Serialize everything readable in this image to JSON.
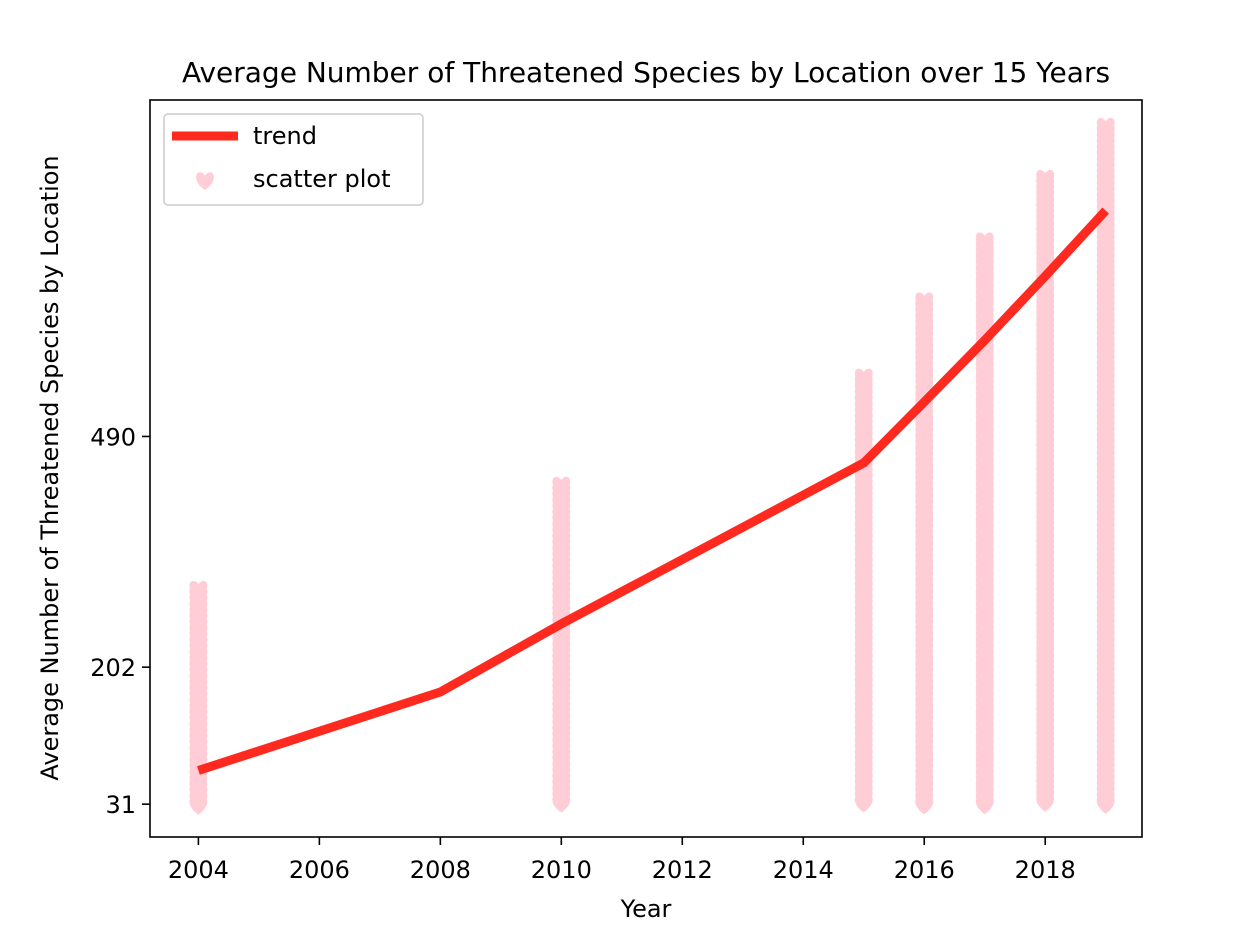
{
  "chart_data": {
    "type": "line",
    "title": "Average Number of Threatened Species by Location over 15 Years",
    "xlabel": "Year",
    "ylabel": "Average Number of Threatened Species by Location",
    "xlim": [
      2003.2,
      2019.6
    ],
    "ylim": [
      -10,
      910
    ],
    "xticks": [
      2004,
      2006,
      2008,
      2010,
      2012,
      2014,
      2016,
      2018
    ],
    "yticks": [
      31,
      202,
      490
    ],
    "grid": false,
    "legend": {
      "position": "top-left",
      "entries": [
        "trend",
        "scatter plot"
      ]
    },
    "series": [
      {
        "name": "trend",
        "color": "#ff2a1f",
        "x": [
          2004,
          2008,
          2010,
          2015,
          2016,
          2017,
          2018,
          2019
        ],
        "y": [
          73,
          171,
          256,
          457,
          533,
          610,
          690,
          772
        ]
      },
      {
        "name": "scatter plot",
        "color": "#ffcdd6",
        "marker": "heart-icon",
        "ranges": [
          {
            "x": 2004,
            "ymin": 27,
            "ymax": 300
          },
          {
            "x": 2010,
            "ymin": 27,
            "ymax": 430
          },
          {
            "x": 2015,
            "ymin": 27,
            "ymax": 565
          },
          {
            "x": 2016,
            "ymin": 27,
            "ymax": 660
          },
          {
            "x": 2017,
            "ymin": 27,
            "ymax": 735
          },
          {
            "x": 2018,
            "ymin": 27,
            "ymax": 813
          },
          {
            "x": 2019,
            "ymin": 27,
            "ymax": 878
          }
        ]
      }
    ]
  }
}
